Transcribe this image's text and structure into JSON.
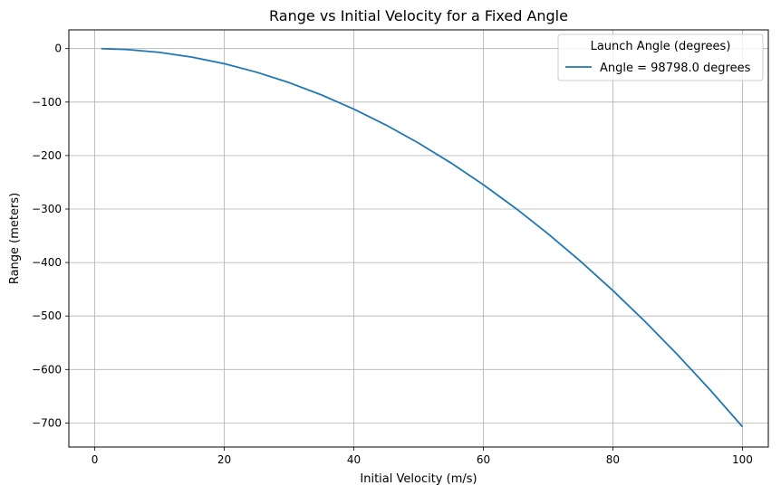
{
  "chart_data": {
    "type": "line",
    "title": "Range vs Initial Velocity for a Fixed Angle",
    "xlabel": "Initial Velocity (m/s)",
    "ylabel": "Range (meters)",
    "xlim": [
      -4,
      104
    ],
    "ylim": [
      -745,
      35
    ],
    "xticks": [
      0,
      20,
      40,
      60,
      80,
      100
    ],
    "yticks": [
      0,
      -100,
      -200,
      -300,
      -400,
      -500,
      -600,
      -700
    ],
    "xtick_labels": [
      "0",
      "20",
      "40",
      "60",
      "80",
      "100"
    ],
    "ytick_labels": [
      "0",
      "−100",
      "−200",
      "−300",
      "−400",
      "−500",
      "−600",
      "−700"
    ],
    "grid": true,
    "legend": {
      "title": "Launch Angle (degrees)",
      "position": "top-right"
    },
    "series": [
      {
        "name": "Angle = 98798.0 degrees",
        "color": "#1f77b4",
        "x": [
          1,
          5,
          10,
          15,
          20,
          25,
          30,
          35,
          40,
          45,
          50,
          55,
          60,
          65,
          70,
          75,
          80,
          85,
          90,
          95,
          100
        ],
        "y": [
          -0.07,
          -1.77,
          -7.07,
          -15.9,
          -28.3,
          -44.2,
          -63.6,
          -86.6,
          -113.1,
          -143.1,
          -176.7,
          -213.8,
          -254.5,
          -298.7,
          -346.4,
          -397.6,
          -452.4,
          -510.7,
          -572.6,
          -638.0,
          -706.9
        ]
      }
    ]
  }
}
